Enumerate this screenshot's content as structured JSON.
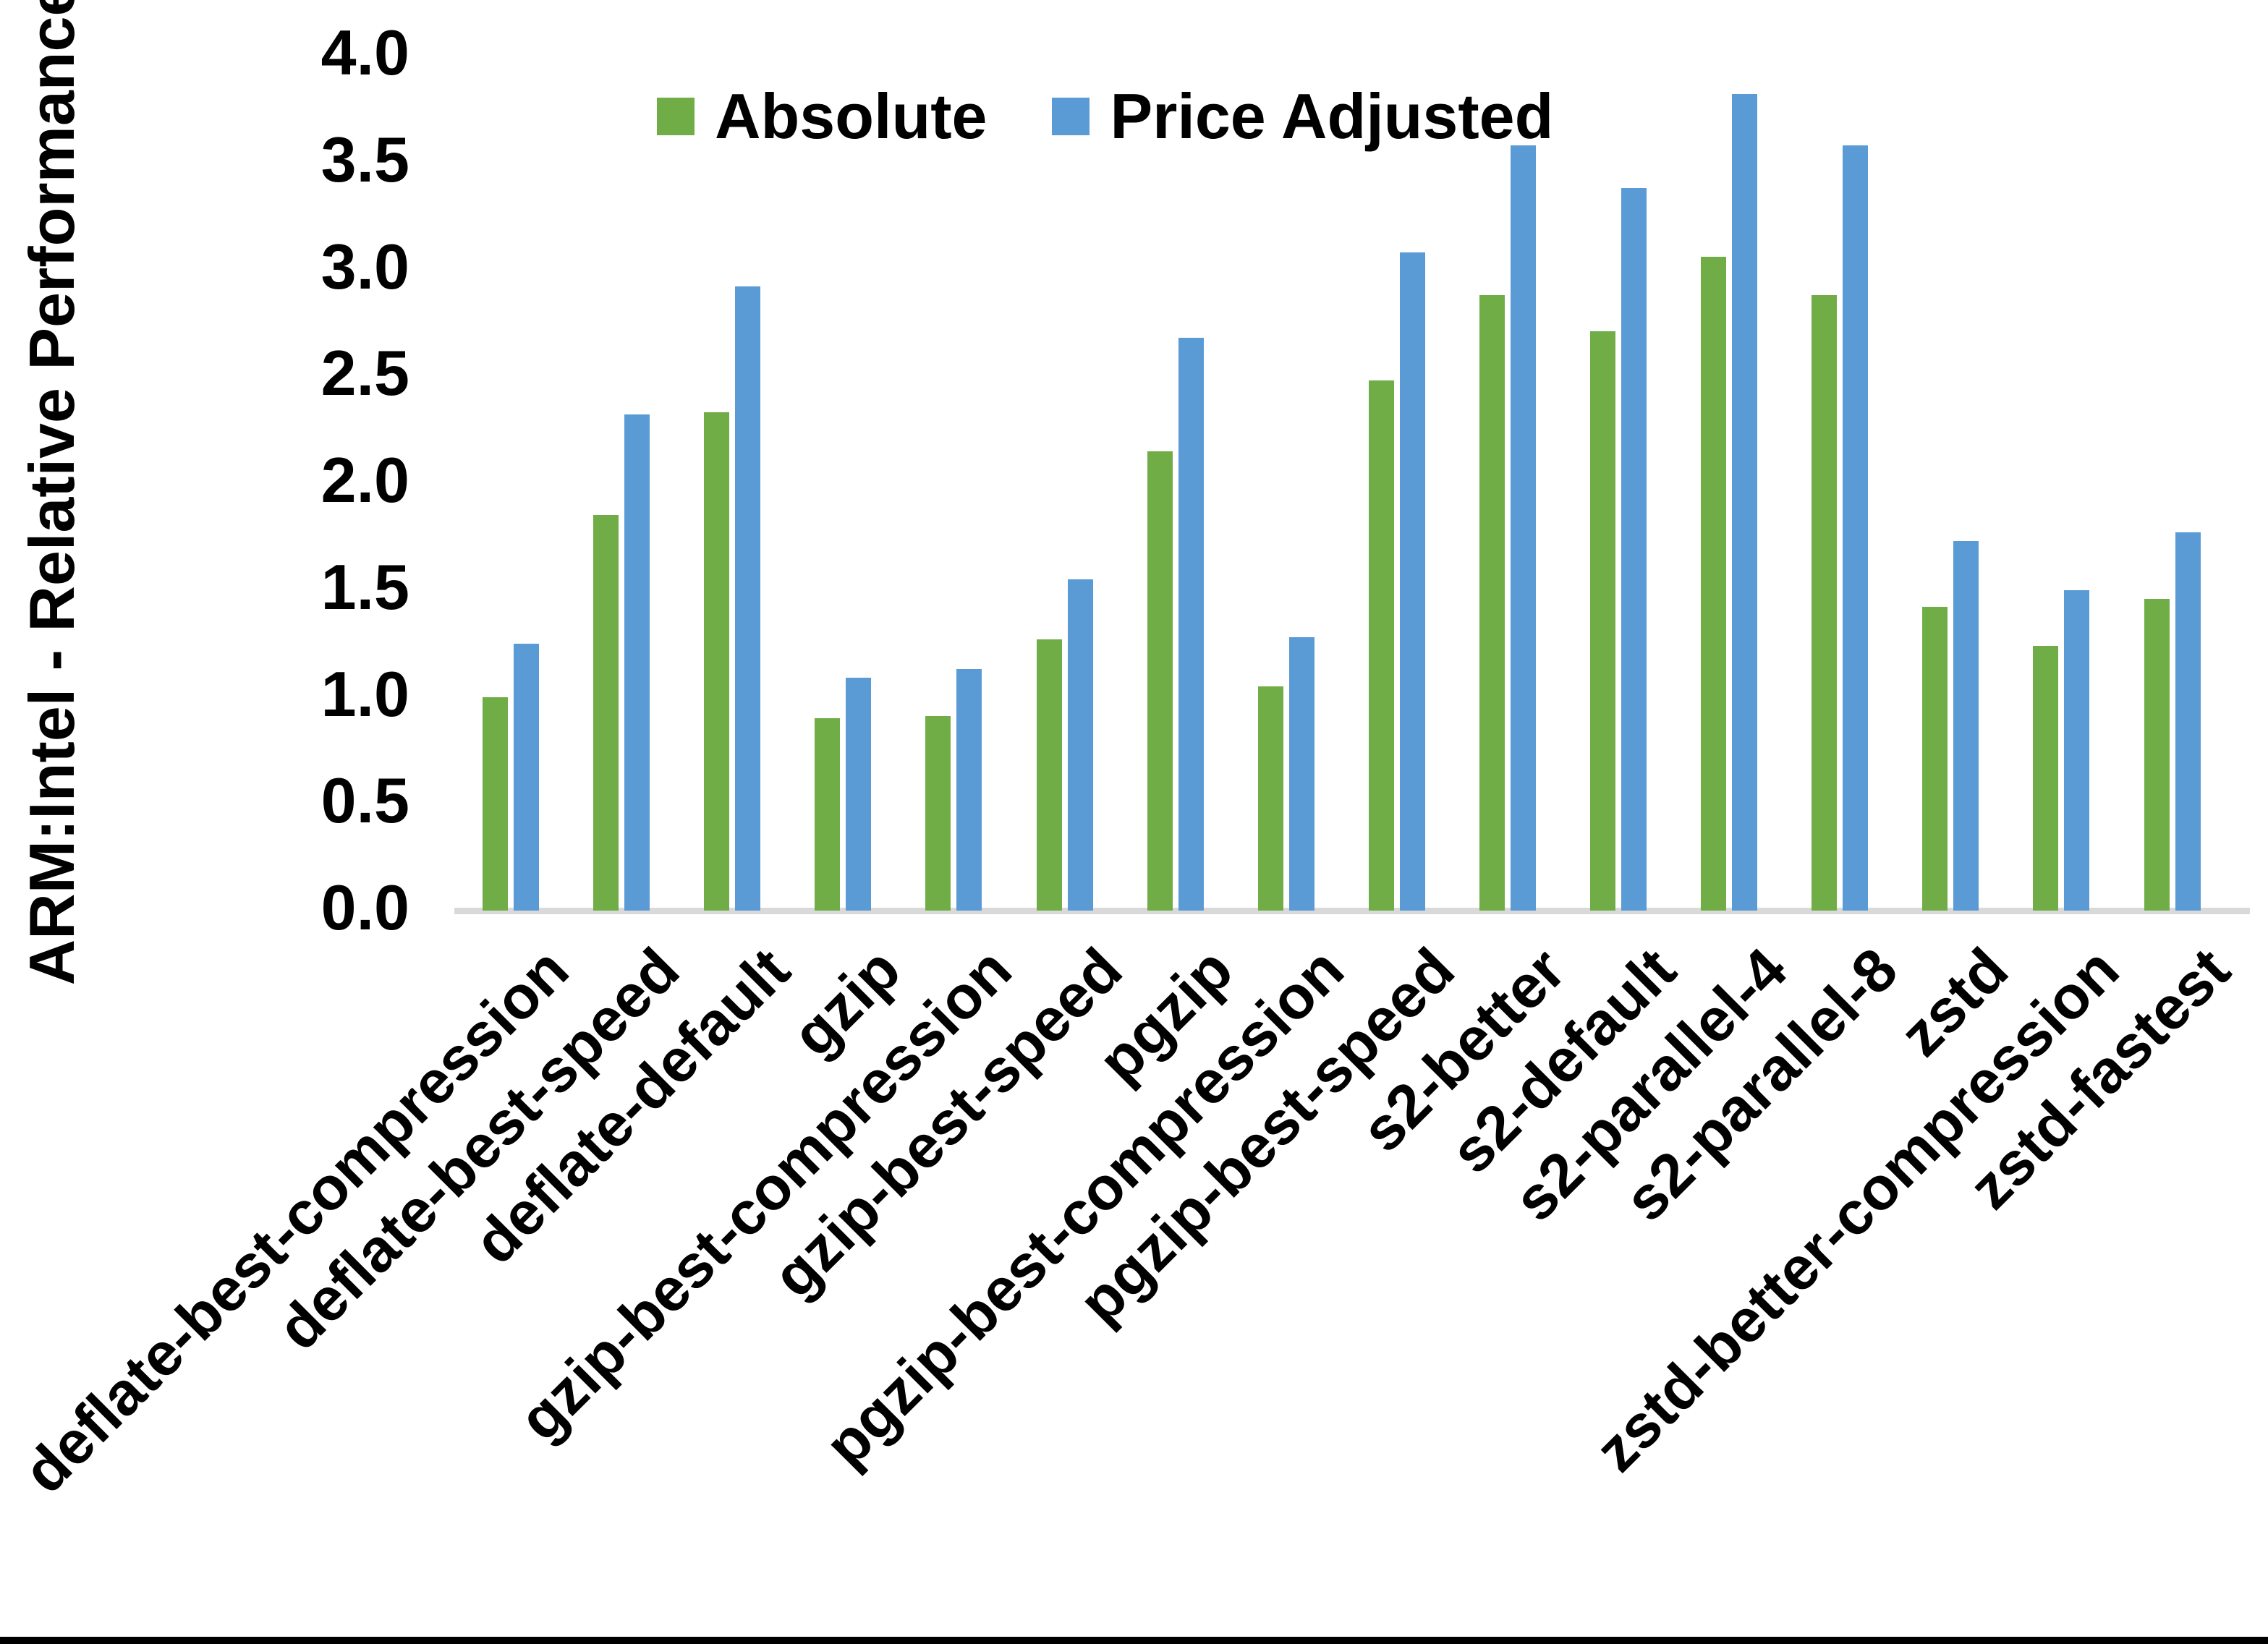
{
  "y_axis": {
    "title": "ARM:Intel - Relative Performance",
    "tick_labels": [
      "0.0",
      "0.5",
      "1.0",
      "1.5",
      "2.0",
      "2.5",
      "3.0",
      "3.5",
      "4.0"
    ]
  },
  "legend": {
    "items": [
      {
        "label": "Absolute",
        "color": "#70AD47"
      },
      {
        "label": "Price Adjusted",
        "color": "#5B9BD5"
      }
    ]
  },
  "colors": {
    "absolute_green": "#70AD47",
    "price_adjusted_blue": "#5B9BD5",
    "axis_line_gray": "#D9D9D9",
    "text_black": "#000000"
  },
  "chart_data": {
    "type": "bar",
    "title": "",
    "xlabel": "",
    "ylabel": "ARM:Intel - Relative Performance",
    "ylim": [
      0.0,
      4.0
    ],
    "ytick_step": 0.5,
    "grid": false,
    "legend_position": "top",
    "categories": [
      "deflate-best-compression",
      "deflate-best-speed",
      "deflate-default",
      "gzip",
      "gzip-best-compression",
      "gzip-best-speed",
      "pgzip",
      "pgzip-best-compression",
      "pgzip-best-speed",
      "s2-better",
      "s2-default",
      "s2-parallel-4",
      "s2-parallel-8",
      "zstd",
      "zstd-better-compression",
      "zstd-fastest"
    ],
    "series": [
      {
        "name": "Absolute",
        "color": "#70AD47",
        "values": [
          1.0,
          1.85,
          2.33,
          0.9,
          0.91,
          1.27,
          2.15,
          1.05,
          2.48,
          2.88,
          2.71,
          3.06,
          2.88,
          1.42,
          1.24,
          1.46
        ]
      },
      {
        "name": "Price Adjusted",
        "color": "#5B9BD5",
        "values": [
          1.25,
          2.32,
          2.92,
          1.09,
          1.13,
          1.55,
          2.68,
          1.28,
          3.08,
          3.58,
          3.38,
          3.82,
          3.58,
          1.73,
          1.5,
          1.77
        ]
      }
    ]
  }
}
